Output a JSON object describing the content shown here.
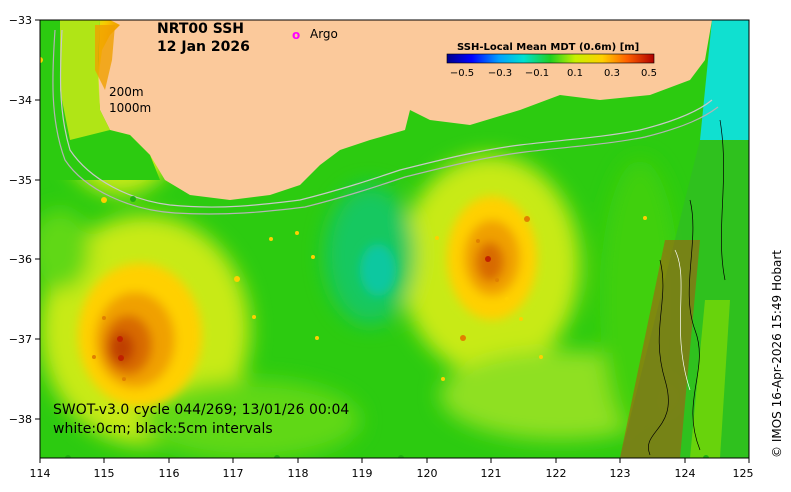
{
  "title_line1": "NRT00 SSH",
  "title_line2": "12 Jan 2026",
  "legend_argo": "Argo",
  "argo_marker": "o",
  "contour_200": "200m",
  "contour_1000": "1000m",
  "colorbar": {
    "title": "SSH-Local Mean MDT (0.6m) [m]",
    "ticks": [
      "−0.5",
      "−0.3",
      "−0.1",
      "0.1",
      "0.3",
      "0.5"
    ]
  },
  "x_ticks": [
    "114",
    "115",
    "116",
    "117",
    "118",
    "119",
    "120",
    "121",
    "122",
    "123",
    "124",
    "125"
  ],
  "y_ticks": [
    "−33",
    "−34",
    "−35",
    "−36",
    "−37",
    "−38"
  ],
  "footer_line1": "SWOT-v3.0 cycle 044/269; 13/01/26 00:04",
  "footer_line2": "white:0cm; black:5cm intervals",
  "credit": "© IMOS 16-Apr-2026 15:49 Hobart",
  "colors": {
    "land": "#fbc99b",
    "argo": "#ff00ff",
    "ocean_base": "#2ccb10"
  }
}
